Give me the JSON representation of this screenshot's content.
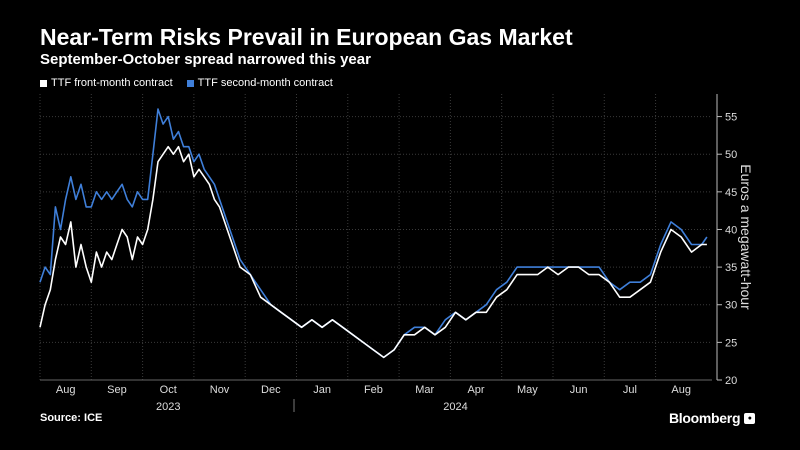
{
  "title": "Near-Term Risks Prevail in European Gas Market",
  "subtitle": "September-October spread narrowed this year",
  "source": "Source: ICE",
  "brand": "Bloomberg",
  "colors": {
    "front": "#ffffff",
    "second": "#3f7fd9",
    "grid": "#3a3a3a"
  },
  "chart_data": {
    "type": "line",
    "ylabel": "Euros a megawatt-hour",
    "ylim": [
      20,
      58
    ],
    "yticks": [
      20,
      25,
      30,
      35,
      40,
      45,
      50,
      55
    ],
    "months": [
      {
        "label": "Aug",
        "x": 1.0
      },
      {
        "label": "Sep",
        "x": 2.0
      },
      {
        "label": "Oct",
        "x": 3.0
      },
      {
        "label": "Nov",
        "x": 4.0
      },
      {
        "label": "Dec",
        "x": 5.0
      },
      {
        "label": "Jan",
        "x": 6.0
      },
      {
        "label": "Feb",
        "x": 7.0
      },
      {
        "label": "Mar",
        "x": 8.0
      },
      {
        "label": "Apr",
        "x": 9.0
      },
      {
        "label": "May",
        "x": 10.0
      },
      {
        "label": "Jun",
        "x": 11.0
      },
      {
        "label": "Jul",
        "x": 12.0
      },
      {
        "label": "Aug",
        "x": 13.0
      }
    ],
    "years": [
      {
        "label": "2023",
        "x": 3.0
      },
      {
        "label": "2024",
        "x": 8.6
      }
    ],
    "xlim": [
      0.5,
      13.6
    ],
    "series": [
      {
        "name": "TTF front-month contract",
        "x": [
          0.5,
          0.6,
          0.7,
          0.8,
          0.9,
          1.0,
          1.1,
          1.2,
          1.3,
          1.4,
          1.5,
          1.6,
          1.7,
          1.8,
          1.9,
          2.0,
          2.1,
          2.2,
          2.3,
          2.4,
          2.5,
          2.6,
          2.7,
          2.8,
          2.9,
          3.0,
          3.1,
          3.2,
          3.3,
          3.4,
          3.5,
          3.6,
          3.7,
          3.8,
          3.9,
          4.0,
          4.2,
          4.4,
          4.6,
          4.8,
          5.0,
          5.2,
          5.4,
          5.6,
          5.8,
          6.0,
          6.2,
          6.4,
          6.6,
          6.8,
          7.0,
          7.2,
          7.4,
          7.6,
          7.8,
          8.0,
          8.2,
          8.4,
          8.6,
          8.8,
          9.0,
          9.2,
          9.4,
          9.6,
          9.8,
          10.0,
          10.2,
          10.4,
          10.6,
          10.8,
          11.0,
          11.2,
          11.4,
          11.6,
          11.8,
          12.0,
          12.2,
          12.4,
          12.6,
          12.8,
          13.0,
          13.2,
          13.4,
          13.5
        ],
        "y": [
          27,
          30,
          32,
          36,
          39,
          38,
          41,
          35,
          38,
          35,
          33,
          37,
          35,
          37,
          36,
          38,
          40,
          39,
          36,
          39,
          38,
          40,
          44,
          49,
          50,
          51,
          50,
          51,
          49,
          50,
          47,
          48,
          47,
          46,
          44,
          43,
          39,
          35,
          34,
          31,
          30,
          29,
          28,
          27,
          28,
          27,
          28,
          27,
          26,
          25,
          24,
          23,
          24,
          26,
          26,
          27,
          26,
          27,
          29,
          28,
          29,
          29,
          31,
          32,
          34,
          34,
          34,
          35,
          34,
          35,
          35,
          34,
          34,
          33,
          31,
          31,
          32,
          33,
          37,
          40,
          39,
          37,
          38,
          38
        ]
      },
      {
        "name": "TTF second-month contract",
        "x": [
          0.5,
          0.6,
          0.7,
          0.8,
          0.9,
          1.0,
          1.1,
          1.2,
          1.3,
          1.4,
          1.5,
          1.6,
          1.7,
          1.8,
          1.9,
          2.0,
          2.1,
          2.2,
          2.3,
          2.4,
          2.5,
          2.6,
          2.7,
          2.8,
          2.9,
          3.0,
          3.1,
          3.2,
          3.3,
          3.4,
          3.5,
          3.6,
          3.7,
          3.8,
          3.9,
          4.0,
          4.2,
          4.4,
          4.6,
          4.8,
          5.0,
          5.2,
          5.4,
          5.6,
          5.8,
          6.0,
          6.2,
          6.4,
          6.6,
          6.8,
          7.0,
          7.2,
          7.4,
          7.6,
          7.8,
          8.0,
          8.2,
          8.4,
          8.6,
          8.8,
          9.0,
          9.2,
          9.4,
          9.6,
          9.8,
          10.0,
          10.2,
          10.4,
          10.6,
          10.8,
          11.0,
          11.2,
          11.4,
          11.6,
          11.8,
          12.0,
          12.2,
          12.4,
          12.6,
          12.8,
          13.0,
          13.2,
          13.4,
          13.5
        ],
        "y": [
          33,
          35,
          34,
          43,
          40,
          44,
          47,
          44,
          46,
          43,
          43,
          45,
          44,
          45,
          44,
          45,
          46,
          44,
          43,
          45,
          44,
          44,
          50,
          56,
          54,
          55,
          52,
          53,
          51,
          51,
          49,
          50,
          48,
          47,
          46,
          44,
          40,
          36,
          34,
          32,
          30,
          29,
          28,
          27,
          28,
          27,
          28,
          27,
          26,
          25,
          24,
          23,
          24,
          26,
          27,
          27,
          26,
          28,
          29,
          28,
          29,
          30,
          32,
          33,
          35,
          35,
          35,
          35,
          35,
          35,
          35,
          35,
          35,
          33,
          32,
          33,
          33,
          34,
          38,
          41,
          40,
          38,
          38,
          39
        ]
      }
    ]
  }
}
